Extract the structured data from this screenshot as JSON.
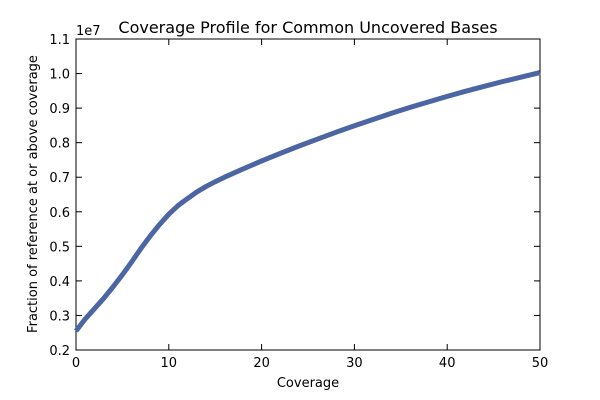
{
  "chart_data": {
    "type": "line",
    "title": "Coverage Profile for Common Uncovered Bases",
    "xlabel": "Coverage",
    "ylabel": "Fraction of reference at or above coverage",
    "y_offset_text": "1e7",
    "xlim": [
      0,
      50
    ],
    "ylim": [
      0.2,
      1.1
    ],
    "x_ticks": [
      0,
      10,
      20,
      30,
      40,
      50
    ],
    "x_tick_labels": [
      "0",
      "10",
      "20",
      "30",
      "40",
      "50"
    ],
    "y_ticks": [
      0.2,
      0.3,
      0.4,
      0.5,
      0.6,
      0.7,
      0.8,
      0.9,
      1.0,
      1.1
    ],
    "y_tick_labels": [
      "0.2",
      "0.3",
      "0.4",
      "0.5",
      "0.6",
      "0.7",
      "0.8",
      "0.9",
      "1.0",
      "1.1"
    ],
    "grid": false,
    "line_color": "#4c66a3",
    "series": [
      {
        "x": [
          0,
          1,
          2,
          3,
          4,
          5,
          6,
          7,
          8,
          9,
          10,
          11,
          12,
          13,
          14,
          15,
          16,
          18,
          20,
          22,
          24,
          26,
          28,
          30,
          32,
          34,
          36,
          38,
          40,
          42,
          44,
          46,
          48,
          50
        ],
        "values": [
          0.255,
          0.29,
          0.32,
          0.35,
          0.383,
          0.418,
          0.455,
          0.494,
          0.53,
          0.563,
          0.593,
          0.618,
          0.638,
          0.657,
          0.673,
          0.687,
          0.7,
          0.724,
          0.747,
          0.769,
          0.79,
          0.81,
          0.83,
          0.849,
          0.867,
          0.885,
          0.902,
          0.918,
          0.934,
          0.949,
          0.963,
          0.977,
          0.99,
          1.003
        ]
      }
    ]
  }
}
